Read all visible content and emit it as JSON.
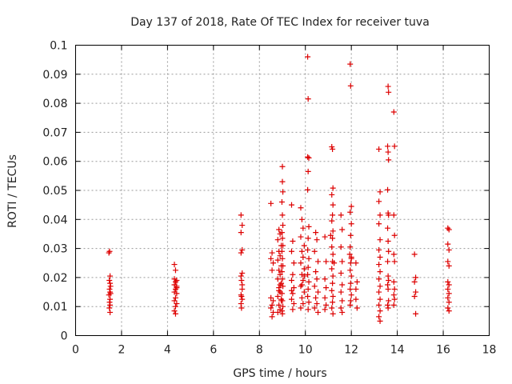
{
  "chart_data": {
    "type": "scatter",
    "title": "Day 137 of 2018, Rate Of TEC Index for receiver tuva",
    "xlabel": "GPS time / hours",
    "ylabel": "ROTI / TECUs",
    "xlim": [
      0,
      18
    ],
    "ylim": [
      0,
      0.1
    ],
    "xticks": [
      "0",
      "2",
      "4",
      "6",
      "8",
      "10",
      "12",
      "14",
      "16",
      "18"
    ],
    "yticks": [
      "0",
      "0.01",
      "0.02",
      "0.03",
      "0.04",
      "0.05",
      "0.06",
      "0.07",
      "0.08",
      "0.09",
      "0.1"
    ],
    "grid": true,
    "marker": "+",
    "color": "#dd0000",
    "series": [
      {
        "name": "ROTI",
        "points": [
          [
            1.45,
            0.0285
          ],
          [
            1.48,
            0.029
          ],
          [
            1.5,
            0.0205
          ],
          [
            1.47,
            0.019
          ],
          [
            1.5,
            0.018
          ],
          [
            1.48,
            0.016
          ],
          [
            1.5,
            0.015
          ],
          [
            1.52,
            0.0145
          ],
          [
            1.45,
            0.014
          ],
          [
            1.5,
            0.0125
          ],
          [
            1.48,
            0.0115
          ],
          [
            1.5,
            0.0105
          ],
          [
            1.47,
            0.0095
          ],
          [
            1.5,
            0.008
          ],
          [
            1.52,
            0.017
          ],
          [
            4.3,
            0.0245
          ],
          [
            4.35,
            0.0225
          ],
          [
            4.3,
            0.0195
          ],
          [
            4.4,
            0.019
          ],
          [
            4.35,
            0.0185
          ],
          [
            4.3,
            0.0175
          ],
          [
            4.4,
            0.017
          ],
          [
            4.35,
            0.016
          ],
          [
            4.3,
            0.015
          ],
          [
            4.4,
            0.0145
          ],
          [
            4.35,
            0.013
          ],
          [
            4.3,
            0.012
          ],
          [
            4.4,
            0.011
          ],
          [
            4.35,
            0.01
          ],
          [
            4.3,
            0.0085
          ],
          [
            4.35,
            0.0075
          ],
          [
            4.4,
            0.0165
          ],
          [
            7.2,
            0.0415
          ],
          [
            7.25,
            0.038
          ],
          [
            7.2,
            0.0355
          ],
          [
            7.25,
            0.0295
          ],
          [
            7.2,
            0.0285
          ],
          [
            7.25,
            0.0215
          ],
          [
            7.2,
            0.0205
          ],
          [
            7.22,
            0.019
          ],
          [
            7.25,
            0.016
          ],
          [
            7.2,
            0.014
          ],
          [
            7.22,
            0.0135
          ],
          [
            7.25,
            0.0125
          ],
          [
            7.2,
            0.011
          ],
          [
            7.22,
            0.0095
          ],
          [
            7.25,
            0.0175
          ],
          [
            8.5,
            0.0455
          ],
          [
            8.55,
            0.0285
          ],
          [
            8.5,
            0.0265
          ],
          [
            8.6,
            0.025
          ],
          [
            8.55,
            0.0225
          ],
          [
            8.5,
            0.013
          ],
          [
            8.6,
            0.012
          ],
          [
            8.55,
            0.0105
          ],
          [
            8.5,
            0.0095
          ],
          [
            8.6,
            0.008
          ],
          [
            8.55,
            0.0065
          ],
          [
            8.85,
            0.0365
          ],
          [
            8.9,
            0.035
          ],
          [
            8.8,
            0.033
          ],
          [
            8.95,
            0.031
          ],
          [
            8.85,
            0.029
          ],
          [
            8.9,
            0.0275
          ],
          [
            8.8,
            0.026
          ],
          [
            8.95,
            0.024
          ],
          [
            8.85,
            0.0225
          ],
          [
            8.9,
            0.021
          ],
          [
            8.8,
            0.0195
          ],
          [
            8.95,
            0.018
          ],
          [
            8.85,
            0.0165
          ],
          [
            8.9,
            0.015
          ],
          [
            8.8,
            0.0135
          ],
          [
            8.95,
            0.012
          ],
          [
            8.85,
            0.0105
          ],
          [
            8.9,
            0.009
          ],
          [
            8.8,
            0.008
          ],
          [
            8.95,
            0.0125
          ],
          [
            8.9,
            0.0175
          ],
          [
            8.85,
            0.0155
          ],
          [
            9.0,
            0.0582
          ],
          [
            9.0,
            0.053
          ],
          [
            9.02,
            0.0495
          ],
          [
            8.98,
            0.046
          ],
          [
            9.0,
            0.0415
          ],
          [
            9.02,
            0.038
          ],
          [
            8.98,
            0.0355
          ],
          [
            9.0,
            0.0335
          ],
          [
            9.02,
            0.031
          ],
          [
            8.98,
            0.029
          ],
          [
            9.0,
            0.0265
          ],
          [
            9.02,
            0.024
          ],
          [
            8.98,
            0.022
          ],
          [
            9.0,
            0.0195
          ],
          [
            9.02,
            0.017
          ],
          [
            8.98,
            0.0145
          ],
          [
            9.0,
            0.012
          ],
          [
            9.02,
            0.01
          ],
          [
            8.98,
            0.0085
          ],
          [
            9.0,
            0.0075
          ],
          [
            9.4,
            0.045
          ],
          [
            9.45,
            0.0325
          ],
          [
            9.4,
            0.029
          ],
          [
            9.5,
            0.025
          ],
          [
            9.45,
            0.021
          ],
          [
            9.4,
            0.019
          ],
          [
            9.5,
            0.0165
          ],
          [
            9.45,
            0.0145
          ],
          [
            9.4,
            0.0125
          ],
          [
            9.5,
            0.011
          ],
          [
            9.45,
            0.009
          ],
          [
            9.4,
            0.0155
          ],
          [
            9.8,
            0.044
          ],
          [
            9.85,
            0.04
          ],
          [
            9.9,
            0.037
          ],
          [
            9.8,
            0.034
          ],
          [
            9.95,
            0.031
          ],
          [
            9.85,
            0.029
          ],
          [
            9.9,
            0.027
          ],
          [
            9.8,
            0.025
          ],
          [
            9.95,
            0.023
          ],
          [
            9.85,
            0.021
          ],
          [
            9.9,
            0.019
          ],
          [
            9.8,
            0.017
          ],
          [
            9.95,
            0.015
          ],
          [
            9.85,
            0.013
          ],
          [
            9.9,
            0.011
          ],
          [
            9.8,
            0.0095
          ],
          [
            9.85,
            0.0175
          ],
          [
            9.95,
            0.0205
          ],
          [
            10.1,
            0.096
          ],
          [
            10.12,
            0.0815
          ],
          [
            10.1,
            0.0615
          ],
          [
            10.15,
            0.0612
          ],
          [
            10.12,
            0.0565
          ],
          [
            10.1,
            0.0502
          ],
          [
            10.15,
            0.0375
          ],
          [
            10.12,
            0.0335
          ],
          [
            10.1,
            0.0295
          ],
          [
            10.15,
            0.0265
          ],
          [
            10.12,
            0.0235
          ],
          [
            10.1,
            0.021
          ],
          [
            10.15,
            0.0185
          ],
          [
            10.12,
            0.016
          ],
          [
            10.1,
            0.0135
          ],
          [
            10.15,
            0.0115
          ],
          [
            10.12,
            0.009
          ],
          [
            10.45,
            0.0355
          ],
          [
            10.5,
            0.033
          ],
          [
            10.4,
            0.029
          ],
          [
            10.55,
            0.0255
          ],
          [
            10.45,
            0.022
          ],
          [
            10.5,
            0.0195
          ],
          [
            10.4,
            0.017
          ],
          [
            10.55,
            0.015
          ],
          [
            10.45,
            0.013
          ],
          [
            10.5,
            0.011
          ],
          [
            10.4,
            0.0095
          ],
          [
            10.55,
            0.008
          ],
          [
            10.85,
            0.034
          ],
          [
            10.9,
            0.0255
          ],
          [
            10.85,
            0.0195
          ],
          [
            10.9,
            0.0165
          ],
          [
            10.85,
            0.013
          ],
          [
            10.9,
            0.0105
          ],
          [
            10.85,
            0.009
          ],
          [
            11.15,
            0.065
          ],
          [
            11.18,
            0.0642
          ],
          [
            11.2,
            0.0508
          ],
          [
            11.15,
            0.0485
          ],
          [
            11.2,
            0.045
          ],
          [
            11.18,
            0.0415
          ],
          [
            11.15,
            0.0395
          ],
          [
            11.2,
            0.036
          ],
          [
            11.18,
            0.0335
          ],
          [
            11.15,
            0.0305
          ],
          [
            11.2,
            0.028
          ],
          [
            11.18,
            0.0255
          ],
          [
            11.15,
            0.023
          ],
          [
            11.2,
            0.0205
          ],
          [
            11.18,
            0.018
          ],
          [
            11.15,
            0.0155
          ],
          [
            11.2,
            0.0135
          ],
          [
            11.18,
            0.0115
          ],
          [
            11.15,
            0.0095
          ],
          [
            11.2,
            0.0075
          ],
          [
            11.1,
            0.0345
          ],
          [
            11.25,
            0.025
          ],
          [
            11.55,
            0.0415
          ],
          [
            11.6,
            0.0365
          ],
          [
            11.55,
            0.0305
          ],
          [
            11.6,
            0.0255
          ],
          [
            11.55,
            0.0215
          ],
          [
            11.6,
            0.0175
          ],
          [
            11.55,
            0.015
          ],
          [
            11.6,
            0.012
          ],
          [
            11.55,
            0.0095
          ],
          [
            11.6,
            0.008
          ],
          [
            11.95,
            0.0935
          ],
          [
            11.97,
            0.086
          ],
          [
            12.0,
            0.0445
          ],
          [
            11.95,
            0.0425
          ],
          [
            12.0,
            0.0385
          ],
          [
            11.97,
            0.0345
          ],
          [
            11.95,
            0.0305
          ],
          [
            12.0,
            0.027
          ],
          [
            11.97,
            0.025
          ],
          [
            11.95,
            0.0225
          ],
          [
            12.0,
            0.0205
          ],
          [
            11.97,
            0.018
          ],
          [
            11.95,
            0.016
          ],
          [
            12.0,
            0.014
          ],
          [
            11.97,
            0.012
          ],
          [
            11.95,
            0.0105
          ],
          [
            12.0,
            0.0265
          ],
          [
            11.93,
            0.028
          ],
          [
            12.2,
            0.025
          ],
          [
            12.25,
            0.0185
          ],
          [
            12.2,
            0.0125
          ],
          [
            12.25,
            0.0095
          ],
          [
            12.2,
            0.016
          ],
          [
            13.2,
            0.0642
          ],
          [
            13.25,
            0.0495
          ],
          [
            13.2,
            0.0462
          ],
          [
            13.25,
            0.0415
          ],
          [
            13.2,
            0.0385
          ],
          [
            13.25,
            0.033
          ],
          [
            13.2,
            0.0295
          ],
          [
            13.25,
            0.027
          ],
          [
            13.2,
            0.0245
          ],
          [
            13.25,
            0.022
          ],
          [
            13.2,
            0.0195
          ],
          [
            13.25,
            0.017
          ],
          [
            13.2,
            0.015
          ],
          [
            13.25,
            0.0125
          ],
          [
            13.2,
            0.0105
          ],
          [
            13.25,
            0.0085
          ],
          [
            13.2,
            0.0065
          ],
          [
            13.25,
            0.005
          ],
          [
            13.6,
            0.0858
          ],
          [
            13.62,
            0.0838
          ],
          [
            13.58,
            0.0652
          ],
          [
            13.6,
            0.0632
          ],
          [
            13.62,
            0.0605
          ],
          [
            13.58,
            0.0502
          ],
          [
            13.6,
            0.0422
          ],
          [
            13.62,
            0.0415
          ],
          [
            13.58,
            0.037
          ],
          [
            13.6,
            0.0325
          ],
          [
            13.62,
            0.029
          ],
          [
            13.58,
            0.0255
          ],
          [
            13.6,
            0.0205
          ],
          [
            13.62,
            0.019
          ],
          [
            13.58,
            0.0175
          ],
          [
            13.6,
            0.016
          ],
          [
            13.62,
            0.012
          ],
          [
            13.58,
            0.0105
          ],
          [
            13.6,
            0.0095
          ],
          [
            13.85,
            0.077
          ],
          [
            13.88,
            0.0652
          ],
          [
            13.85,
            0.0415
          ],
          [
            13.88,
            0.0345
          ],
          [
            13.85,
            0.028
          ],
          [
            13.88,
            0.0255
          ],
          [
            13.85,
            0.0185
          ],
          [
            13.88,
            0.016
          ],
          [
            13.85,
            0.014
          ],
          [
            13.88,
            0.0125
          ],
          [
            13.85,
            0.0105
          ],
          [
            14.75,
            0.028
          ],
          [
            14.8,
            0.02
          ],
          [
            14.75,
            0.0185
          ],
          [
            14.8,
            0.015
          ],
          [
            14.75,
            0.0135
          ],
          [
            14.8,
            0.0075
          ],
          [
            16.2,
            0.037
          ],
          [
            16.25,
            0.0365
          ],
          [
            16.2,
            0.0315
          ],
          [
            16.25,
            0.0295
          ],
          [
            16.2,
            0.0255
          ],
          [
            16.25,
            0.024
          ],
          [
            16.2,
            0.0185
          ],
          [
            16.25,
            0.0175
          ],
          [
            16.2,
            0.016
          ],
          [
            16.25,
            0.0145
          ],
          [
            16.2,
            0.013
          ],
          [
            16.25,
            0.0115
          ],
          [
            16.2,
            0.0095
          ],
          [
            16.25,
            0.0085
          ]
        ]
      }
    ]
  }
}
